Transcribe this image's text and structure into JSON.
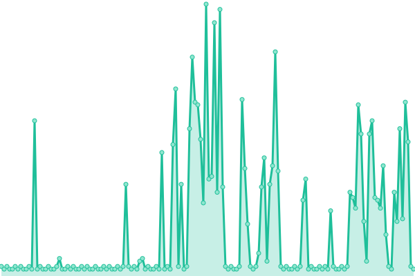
{
  "chart_data": {
    "type": "line",
    "color": "#1fbf9a",
    "marker_fill": "#8fe6cf",
    "ylim": [
      0,
      100
    ],
    "values": [
      1,
      0,
      1,
      0,
      0,
      1,
      0,
      1,
      0,
      0,
      1,
      0,
      56,
      0,
      1,
      0,
      0,
      1,
      0,
      0,
      1,
      4,
      0,
      0,
      1,
      0,
      1,
      0,
      0,
      1,
      0,
      1,
      0,
      0,
      1,
      0,
      0,
      1,
      0,
      1,
      0,
      0,
      1,
      0,
      1,
      32,
      1,
      0,
      1,
      0,
      3,
      4,
      0,
      1,
      0,
      0,
      1,
      0,
      44,
      0,
      1,
      0,
      47,
      68,
      1,
      32,
      0,
      1,
      53,
      80,
      63,
      62,
      49,
      25,
      100,
      34,
      35,
      93,
      29,
      98,
      31,
      1,
      0,
      1,
      0,
      0,
      1,
      64,
      38,
      17,
      1,
      0,
      1,
      6,
      31,
      42,
      3,
      32,
      39,
      82,
      37,
      1,
      0,
      1,
      0,
      0,
      1,
      0,
      1,
      26,
      34,
      0,
      1,
      0,
      0,
      1,
      0,
      1,
      0,
      22,
      1,
      0,
      0,
      1,
      0,
      1,
      29,
      27,
      23,
      62,
      51,
      18,
      3,
      51,
      56,
      27,
      26,
      23,
      39,
      13,
      1,
      0,
      29,
      18,
      53,
      19,
      63,
      48,
      1,
      0
    ]
  }
}
